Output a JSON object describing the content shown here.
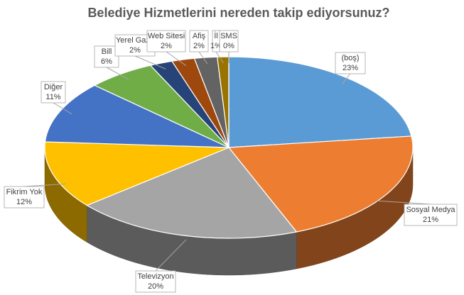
{
  "chart_data": {
    "type": "pie",
    "title": "Belediye Hizmetlerini nereden takip ediyorsunuz?",
    "categories": [
      "(boş)",
      "Sosyal Medya",
      "Televizyon",
      "Fikrim Yok",
      "Diğer",
      "Bill",
      "Yerel Gaze",
      "Web Sitesi",
      "Afiş",
      "İl",
      "SMS"
    ],
    "values": [
      23,
      21,
      20,
      12,
      11,
      6,
      2,
      2,
      2,
      1,
      0
    ],
    "value_labels": [
      "23%",
      "21%",
      "20%",
      "12%",
      "11%",
      "6%",
      "2%",
      "2%",
      "2%",
      "1%",
      "0%"
    ],
    "colors": [
      "#5b9bd5",
      "#ed7d31",
      "#a5a5a5",
      "#ffc000",
      "#4472c4",
      "#70ad47",
      "#264478",
      "#9e480e",
      "#636363",
      "#997300",
      "#255e91"
    ]
  }
}
